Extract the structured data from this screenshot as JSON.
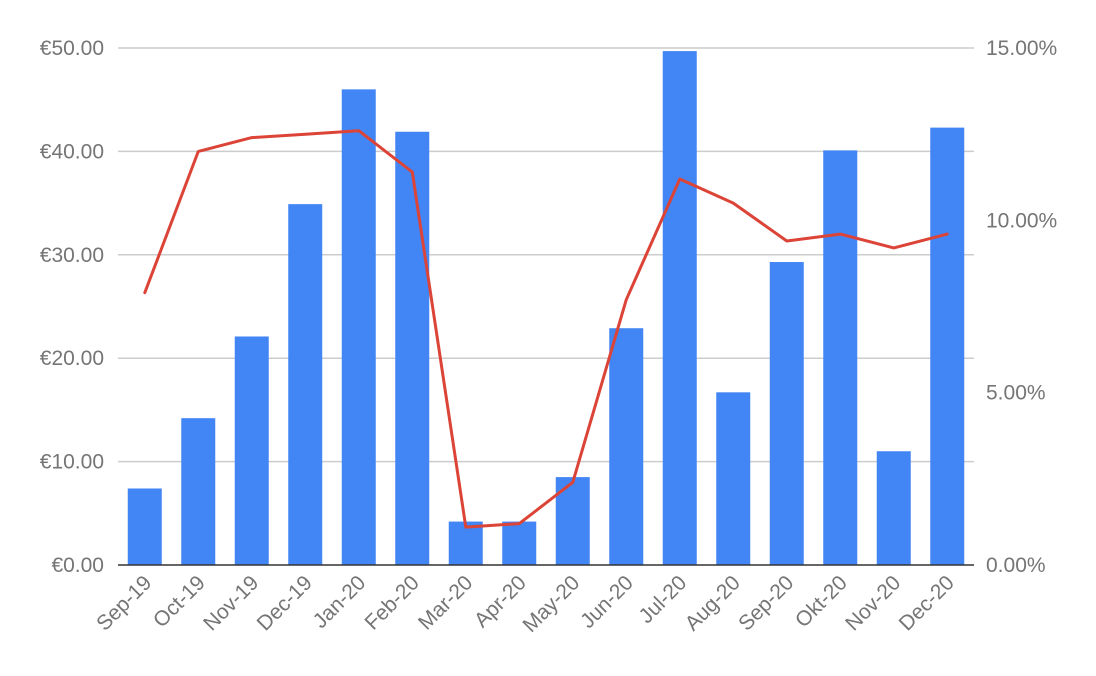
{
  "chart_data": {
    "type": "bar",
    "categories": [
      "Sep-19",
      "Oct-19",
      "Nov-19",
      "Dec-19",
      "Jan-20",
      "Feb-20",
      "Mar-20",
      "Apr-20",
      "May-20",
      "Jun-20",
      "Jul-20",
      "Aug-20",
      "Sep-20",
      "Okt-20",
      "Nov-20",
      "Dec-20"
    ],
    "series": [
      {
        "type": "bar",
        "axis": "left",
        "color": "#4285f4",
        "values": [
          7.4,
          14.2,
          22.1,
          34.9,
          46.0,
          41.9,
          4.2,
          4.2,
          8.5,
          22.9,
          49.7,
          16.7,
          29.3,
          40.1,
          11.0,
          42.3
        ]
      },
      {
        "type": "line",
        "axis": "right",
        "color": "#db4437",
        "values": [
          7.9,
          12.0,
          12.4,
          12.5,
          12.6,
          11.4,
          1.1,
          1.2,
          2.4,
          7.7,
          11.2,
          10.5,
          9.4,
          9.6,
          9.2,
          9.6
        ]
      }
    ],
    "y_left": {
      "lim": [
        0,
        50
      ],
      "ticks": [
        0,
        10,
        20,
        30,
        40,
        50
      ],
      "tick_labels": [
        "€0.00",
        "€10.00",
        "€20.00",
        "€30.00",
        "€40.00",
        "€50.00"
      ]
    },
    "y_right": {
      "lim": [
        0,
        15
      ],
      "ticks": [
        0,
        5,
        10,
        15
      ],
      "tick_labels": [
        "0.00%",
        "5.00%",
        "10.00%",
        "15.00%"
      ]
    },
    "grid": true,
    "legend": "none"
  }
}
